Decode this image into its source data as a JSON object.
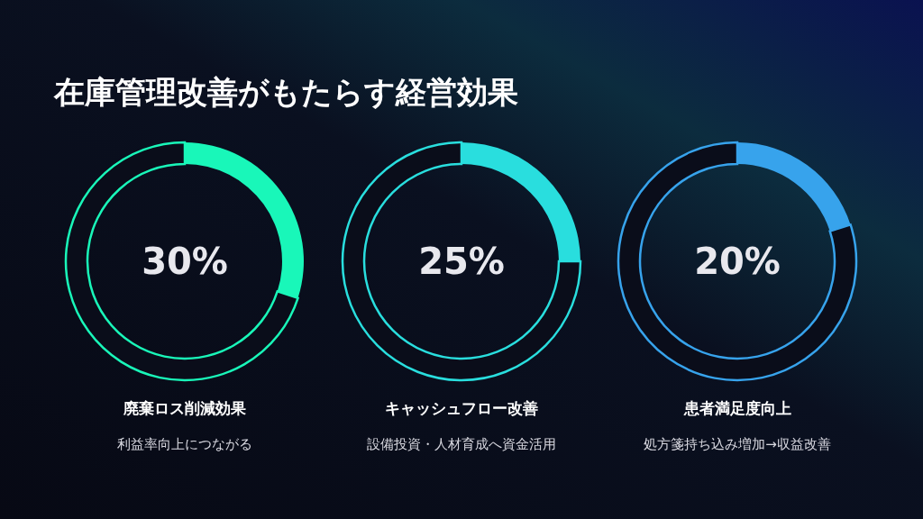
{
  "chart_data": [
    {
      "type": "other",
      "title": "在庫管理改善がもたらす経営効果"
    },
    {
      "type": "donut",
      "title": "廃棄ロス削減効果",
      "subtitle": "利益率向上につながる",
      "categories": [
        null,
        null
      ],
      "values": [
        30,
        70
      ],
      "colors": [
        "#19f7b9",
        "#0a0d1a"
      ],
      "value_labels": [
        "30%",
        null
      ]
    },
    {
      "type": "donut",
      "title": "キャッシュフロー改善",
      "subtitle": "設備投資・人材育成へ資金活用",
      "categories": [
        null,
        null
      ],
      "values": [
        25,
        75
      ],
      "colors": [
        "#29dede",
        "#0a0d1a"
      ],
      "value_labels": [
        "25%",
        null
      ]
    },
    {
      "type": "donut",
      "title": "患者満足度向上",
      "subtitle": "処方箋持ち込み増加→収益改善",
      "categories": [
        null,
        null
      ],
      "values": [
        20,
        80
      ],
      "colors": [
        "#37a3ec",
        "#0a0d1a"
      ],
      "value_labels": [
        "20%",
        null
      ]
    }
  ]
}
